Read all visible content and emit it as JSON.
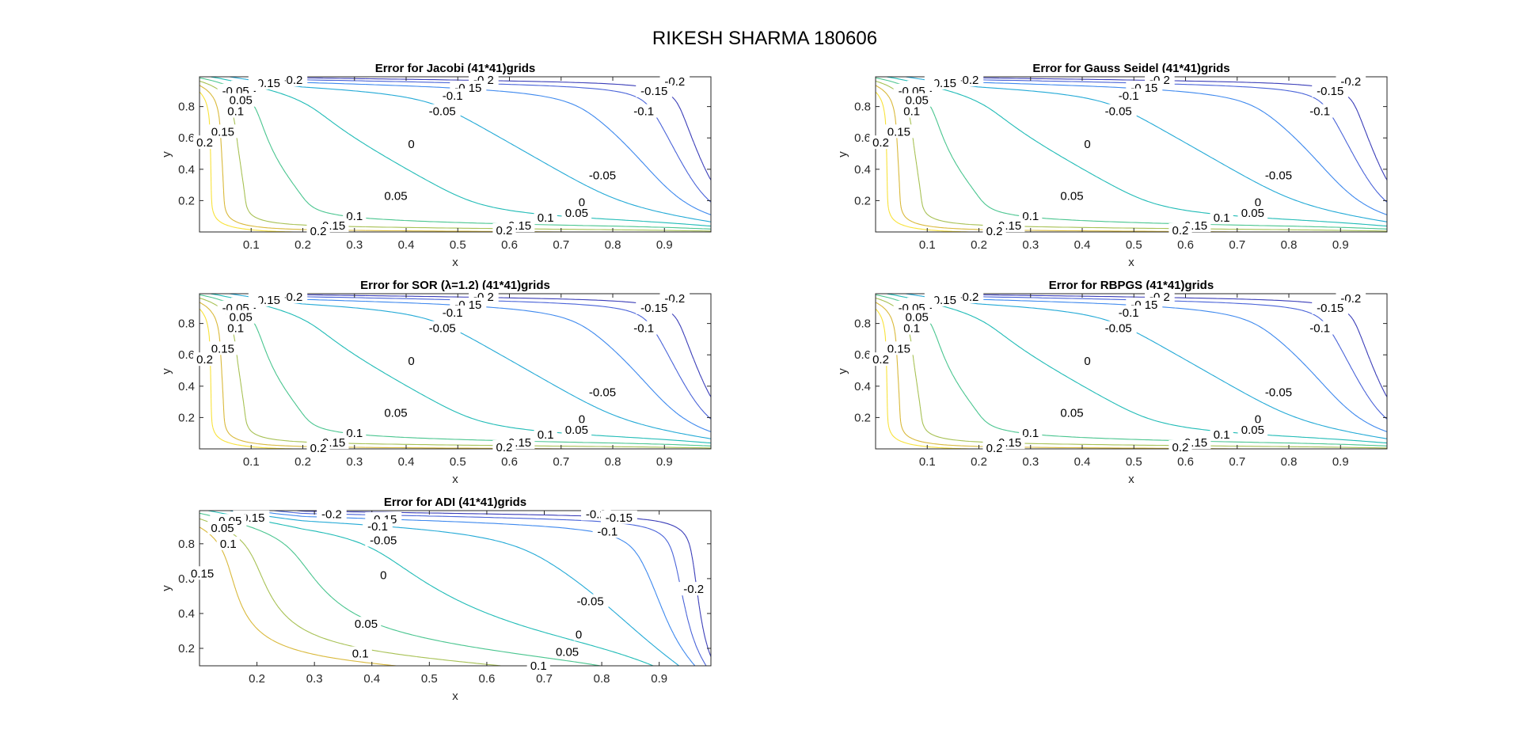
{
  "figure": {
    "title": "RIKESH SHARMA 180606"
  },
  "colors": {
    "levels": {
      "-0.2": "#3a3db8",
      "-0.15": "#4862d8",
      "-0.1": "#3d88ee",
      "-0.05": "#22a9d6",
      "0": "#1fbbb6",
      "0.05": "#49c58f",
      "0.1": "#a7c154",
      "0.15": "#d9b93b",
      "0.2": "#f8e23a"
    },
    "axis": "#262626",
    "background": "#ffffff"
  },
  "chart_data": [
    {
      "type": "contour",
      "title": "Error for Jacobi (41*41)grids",
      "xlabel": "x",
      "ylabel": "y",
      "xlim": [
        0.0,
        0.99
      ],
      "ylim": [
        0.0,
        0.99
      ],
      "xticks": [
        "0.1",
        "0.2",
        "0.3",
        "0.4",
        "0.5",
        "0.6",
        "0.7",
        "0.8",
        "0.9"
      ],
      "yticks": [
        "0.2",
        "0.4",
        "0.6",
        "0.8"
      ],
      "levels": [
        -0.2,
        -0.15,
        -0.1,
        -0.05,
        0,
        0.05,
        0.1,
        0.15,
        0.2
      ],
      "contour_labels": [
        {
          "text": "-0.2",
          "x": 0.18,
          "y": 0.97
        },
        {
          "text": "-0.15",
          "x": 0.13,
          "y": 0.95
        },
        {
          "text": "-0.1",
          "x": 0.09,
          "y": 0.92
        },
        {
          "text": "-0.05",
          "x": 0.07,
          "y": 0.9
        },
        {
          "text": "0.05",
          "x": 0.08,
          "y": 0.84
        },
        {
          "text": "0.1",
          "x": 0.07,
          "y": 0.77
        },
        {
          "text": "0.15",
          "x": 0.045,
          "y": 0.64
        },
        {
          "text": "0.2",
          "x": 0.01,
          "y": 0.57
        },
        {
          "text": "-0.2",
          "x": 0.55,
          "y": 0.97
        },
        {
          "text": "-0.15",
          "x": 0.52,
          "y": 0.92
        },
        {
          "text": "-0.1",
          "x": 0.49,
          "y": 0.87
        },
        {
          "text": "-0.05",
          "x": 0.47,
          "y": 0.77
        },
        {
          "text": "0",
          "x": 0.41,
          "y": 0.56
        },
        {
          "text": "0.05",
          "x": 0.38,
          "y": 0.23
        },
        {
          "text": "0.1",
          "x": 0.3,
          "y": 0.1
        },
        {
          "text": "0.15",
          "x": 0.26,
          "y": 0.04
        },
        {
          "text": "0.2",
          "x": 0.23,
          "y": 0.005
        },
        {
          "text": "-0.2",
          "x": 0.92,
          "y": 0.96
        },
        {
          "text": "-0.15",
          "x": 0.88,
          "y": 0.9
        },
        {
          "text": "-0.1",
          "x": 0.86,
          "y": 0.77
        },
        {
          "text": "-0.05",
          "x": 0.78,
          "y": 0.36
        },
        {
          "text": "0",
          "x": 0.74,
          "y": 0.19
        },
        {
          "text": "0.05",
          "x": 0.73,
          "y": 0.12
        },
        {
          "text": "0.1",
          "x": 0.67,
          "y": 0.09
        },
        {
          "text": "0.15",
          "x": 0.62,
          "y": 0.04
        },
        {
          "text": "0.2",
          "x": 0.59,
          "y": 0.01
        }
      ]
    },
    {
      "type": "contour",
      "title": "Error for Gauss Seidel (41*41)grids",
      "xlabel": "x",
      "ylabel": "y",
      "xlim": [
        0.0,
        0.99
      ],
      "ylim": [
        0.0,
        0.99
      ],
      "xticks": [
        "0.1",
        "0.2",
        "0.3",
        "0.4",
        "0.5",
        "0.6",
        "0.7",
        "0.8",
        "0.9"
      ],
      "yticks": [
        "0.2",
        "0.4",
        "0.6",
        "0.8"
      ],
      "levels": [
        -0.2,
        -0.15,
        -0.1,
        -0.05,
        0,
        0.05,
        0.1,
        0.15,
        0.2
      ],
      "contour_labels": [
        {
          "text": "-0.2",
          "x": 0.18,
          "y": 0.97
        },
        {
          "text": "-0.15",
          "x": 0.13,
          "y": 0.95
        },
        {
          "text": "-0.1",
          "x": 0.09,
          "y": 0.92
        },
        {
          "text": "-0.05",
          "x": 0.07,
          "y": 0.9
        },
        {
          "text": "0.05",
          "x": 0.08,
          "y": 0.84
        },
        {
          "text": "0.1",
          "x": 0.07,
          "y": 0.77
        },
        {
          "text": "0.15",
          "x": 0.045,
          "y": 0.64
        },
        {
          "text": "0.2",
          "x": 0.01,
          "y": 0.57
        },
        {
          "text": "-0.2",
          "x": 0.55,
          "y": 0.97
        },
        {
          "text": "-0.15",
          "x": 0.52,
          "y": 0.92
        },
        {
          "text": "-0.1",
          "x": 0.49,
          "y": 0.87
        },
        {
          "text": "-0.05",
          "x": 0.47,
          "y": 0.77
        },
        {
          "text": "0",
          "x": 0.41,
          "y": 0.56
        },
        {
          "text": "0.05",
          "x": 0.38,
          "y": 0.23
        },
        {
          "text": "0.1",
          "x": 0.3,
          "y": 0.1
        },
        {
          "text": "0.15",
          "x": 0.26,
          "y": 0.04
        },
        {
          "text": "0.2",
          "x": 0.23,
          "y": 0.005
        },
        {
          "text": "-0.2",
          "x": 0.92,
          "y": 0.96
        },
        {
          "text": "-0.15",
          "x": 0.88,
          "y": 0.9
        },
        {
          "text": "-0.1",
          "x": 0.86,
          "y": 0.77
        },
        {
          "text": "-0.05",
          "x": 0.78,
          "y": 0.36
        },
        {
          "text": "0",
          "x": 0.74,
          "y": 0.19
        },
        {
          "text": "0.05",
          "x": 0.73,
          "y": 0.12
        },
        {
          "text": "0.1",
          "x": 0.67,
          "y": 0.09
        },
        {
          "text": "0.15",
          "x": 0.62,
          "y": 0.04
        },
        {
          "text": "0.2",
          "x": 0.59,
          "y": 0.01
        }
      ]
    },
    {
      "type": "contour",
      "title": "Error for SOR (λ=1.2) (41*41)grids",
      "xlabel": "x",
      "ylabel": "y",
      "xlim": [
        0.0,
        0.99
      ],
      "ylim": [
        0.0,
        0.99
      ],
      "xticks": [
        "0.1",
        "0.2",
        "0.3",
        "0.4",
        "0.5",
        "0.6",
        "0.7",
        "0.8",
        "0.9"
      ],
      "yticks": [
        "0.2",
        "0.4",
        "0.6",
        "0.8"
      ],
      "levels": [
        -0.2,
        -0.15,
        -0.1,
        -0.05,
        0,
        0.05,
        0.1,
        0.15,
        0.2
      ],
      "contour_labels": [
        {
          "text": "-0.2",
          "x": 0.18,
          "y": 0.97
        },
        {
          "text": "-0.15",
          "x": 0.13,
          "y": 0.95
        },
        {
          "text": "-0.1",
          "x": 0.09,
          "y": 0.92
        },
        {
          "text": "-0.05",
          "x": 0.07,
          "y": 0.9
        },
        {
          "text": "0.05",
          "x": 0.08,
          "y": 0.84
        },
        {
          "text": "0.1",
          "x": 0.07,
          "y": 0.77
        },
        {
          "text": "0.15",
          "x": 0.045,
          "y": 0.64
        },
        {
          "text": "0.2",
          "x": 0.01,
          "y": 0.57
        },
        {
          "text": "-0.2",
          "x": 0.55,
          "y": 0.97
        },
        {
          "text": "-0.15",
          "x": 0.52,
          "y": 0.92
        },
        {
          "text": "-0.1",
          "x": 0.49,
          "y": 0.87
        },
        {
          "text": "-0.05",
          "x": 0.47,
          "y": 0.77
        },
        {
          "text": "0",
          "x": 0.41,
          "y": 0.56
        },
        {
          "text": "0.05",
          "x": 0.38,
          "y": 0.23
        },
        {
          "text": "0.1",
          "x": 0.3,
          "y": 0.1
        },
        {
          "text": "0.15",
          "x": 0.26,
          "y": 0.04
        },
        {
          "text": "0.2",
          "x": 0.23,
          "y": 0.005
        },
        {
          "text": "-0.2",
          "x": 0.92,
          "y": 0.96
        },
        {
          "text": "-0.15",
          "x": 0.88,
          "y": 0.9
        },
        {
          "text": "-0.1",
          "x": 0.86,
          "y": 0.77
        },
        {
          "text": "-0.05",
          "x": 0.78,
          "y": 0.36
        },
        {
          "text": "0",
          "x": 0.74,
          "y": 0.19
        },
        {
          "text": "0.05",
          "x": 0.73,
          "y": 0.12
        },
        {
          "text": "0.1",
          "x": 0.67,
          "y": 0.09
        },
        {
          "text": "0.15",
          "x": 0.62,
          "y": 0.04
        },
        {
          "text": "0.2",
          "x": 0.59,
          "y": 0.01
        }
      ]
    },
    {
      "type": "contour",
      "title": "Error for RBPGS (41*41)grids",
      "xlabel": "x",
      "ylabel": "y",
      "xlim": [
        0.0,
        0.99
      ],
      "ylim": [
        0.0,
        0.99
      ],
      "xticks": [
        "0.1",
        "0.2",
        "0.3",
        "0.4",
        "0.5",
        "0.6",
        "0.7",
        "0.8",
        "0.9"
      ],
      "yticks": [
        "0.2",
        "0.4",
        "0.6",
        "0.8"
      ],
      "levels": [
        -0.2,
        -0.15,
        -0.1,
        -0.05,
        0,
        0.05,
        0.1,
        0.15,
        0.2
      ],
      "contour_labels": [
        {
          "text": "-0.2",
          "x": 0.18,
          "y": 0.97
        },
        {
          "text": "-0.15",
          "x": 0.13,
          "y": 0.95
        },
        {
          "text": "-0.1",
          "x": 0.09,
          "y": 0.92
        },
        {
          "text": "-0.05",
          "x": 0.07,
          "y": 0.9
        },
        {
          "text": "0.05",
          "x": 0.08,
          "y": 0.84
        },
        {
          "text": "0.1",
          "x": 0.07,
          "y": 0.77
        },
        {
          "text": "0.15",
          "x": 0.045,
          "y": 0.64
        },
        {
          "text": "0.2",
          "x": 0.01,
          "y": 0.57
        },
        {
          "text": "-0.2",
          "x": 0.55,
          "y": 0.97
        },
        {
          "text": "-0.15",
          "x": 0.52,
          "y": 0.92
        },
        {
          "text": "-0.1",
          "x": 0.49,
          "y": 0.87
        },
        {
          "text": "-0.05",
          "x": 0.47,
          "y": 0.77
        },
        {
          "text": "0",
          "x": 0.41,
          "y": 0.56
        },
        {
          "text": "0.05",
          "x": 0.38,
          "y": 0.23
        },
        {
          "text": "0.1",
          "x": 0.3,
          "y": 0.1
        },
        {
          "text": "0.15",
          "x": 0.26,
          "y": 0.04
        },
        {
          "text": "0.2",
          "x": 0.23,
          "y": 0.005
        },
        {
          "text": "-0.2",
          "x": 0.92,
          "y": 0.96
        },
        {
          "text": "-0.15",
          "x": 0.88,
          "y": 0.9
        },
        {
          "text": "-0.1",
          "x": 0.86,
          "y": 0.77
        },
        {
          "text": "-0.05",
          "x": 0.78,
          "y": 0.36
        },
        {
          "text": "0",
          "x": 0.74,
          "y": 0.19
        },
        {
          "text": "0.05",
          "x": 0.73,
          "y": 0.12
        },
        {
          "text": "0.1",
          "x": 0.67,
          "y": 0.09
        },
        {
          "text": "0.15",
          "x": 0.62,
          "y": 0.04
        },
        {
          "text": "0.2",
          "x": 0.59,
          "y": 0.01
        }
      ]
    },
    {
      "type": "contour",
      "title": "Error for ADI (41*41)grids",
      "xlabel": "x",
      "ylabel": "y",
      "xlim": [
        0.1,
        0.99
      ],
      "ylim": [
        0.1,
        0.99
      ],
      "xticks": [
        "0.2",
        "0.3",
        "0.4",
        "0.5",
        "0.6",
        "0.7",
        "0.8",
        "0.9"
      ],
      "yticks": [
        "0.2",
        "0.4",
        "0.6",
        "0.8"
      ],
      "levels": [
        -0.2,
        -0.15,
        -0.1,
        -0.05,
        0,
        0.05,
        0.1,
        0.15
      ],
      "contour_labels": [
        {
          "text": "-0.15",
          "x": 0.19,
          "y": 0.95
        },
        {
          "text": "-0.05",
          "x": 0.15,
          "y": 0.93
        },
        {
          "text": "0.05",
          "x": 0.14,
          "y": 0.89
        },
        {
          "text": "0.1",
          "x": 0.15,
          "y": 0.8
        },
        {
          "text": "0.15",
          "x": 0.105,
          "y": 0.63
        },
        {
          "text": "-0.2",
          "x": 0.33,
          "y": 0.97
        },
        {
          "text": "-0.15",
          "x": 0.42,
          "y": 0.94
        },
        {
          "text": "-0.1",
          "x": 0.41,
          "y": 0.9
        },
        {
          "text": "-0.05",
          "x": 0.42,
          "y": 0.82
        },
        {
          "text": "0",
          "x": 0.42,
          "y": 0.62
        },
        {
          "text": "0.05",
          "x": 0.39,
          "y": 0.34
        },
        {
          "text": "0.1",
          "x": 0.38,
          "y": 0.17
        },
        {
          "text": "-0.2",
          "x": 0.79,
          "y": 0.97
        },
        {
          "text": "-0.15",
          "x": 0.83,
          "y": 0.95
        },
        {
          "text": "-0.1",
          "x": 0.81,
          "y": 0.87
        },
        {
          "text": "-0.05",
          "x": 0.78,
          "y": 0.47
        },
        {
          "text": "0",
          "x": 0.76,
          "y": 0.28
        },
        {
          "text": "0.05",
          "x": 0.74,
          "y": 0.18
        },
        {
          "text": "0.1",
          "x": 0.69,
          "y": 0.1
        },
        {
          "text": "-0.2",
          "x": 0.96,
          "y": 0.54
        }
      ]
    }
  ]
}
